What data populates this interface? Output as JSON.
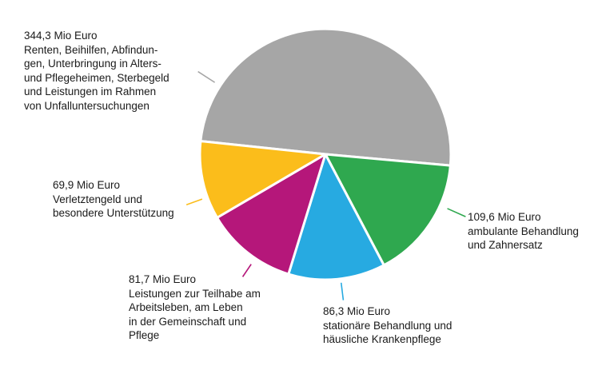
{
  "chart_data": {
    "type": "pie",
    "unit": "Mio Euro",
    "slices": [
      {
        "value": 344.3,
        "value_label": "344,3 Mio Euro",
        "text": "Renten, Beihilfen, Abfindun-\ngen, Unterbringung in Alters-\nund Pflegeheimen, Sterbegeld\nund Leistungen im Rahmen\nvon Unfalluntersuchungen",
        "color": "#a6a6a6"
      },
      {
        "value": 109.6,
        "value_label": "109,6 Mio Euro",
        "text": "ambulante Behandlung\nund Zahnersatz",
        "color": "#2fa84f"
      },
      {
        "value": 86.3,
        "value_label": "86,3 Mio Euro",
        "text": "stationäre Behandlung und\nhäusliche Krankenpflege",
        "color": "#27aae1"
      },
      {
        "value": 81.7,
        "value_label": "81,7 Mio Euro",
        "text": "Leistungen zur Teilhabe am\nArbeitsleben, am Leben\nin der Gemeinschaft und\nPflege",
        "color": "#b5177a"
      },
      {
        "value": 69.9,
        "value_label": "69,9 Mio Euro",
        "text": "Verletztengeld und\nbesondere Unterstützung",
        "color": "#fbbd1b"
      }
    ]
  }
}
